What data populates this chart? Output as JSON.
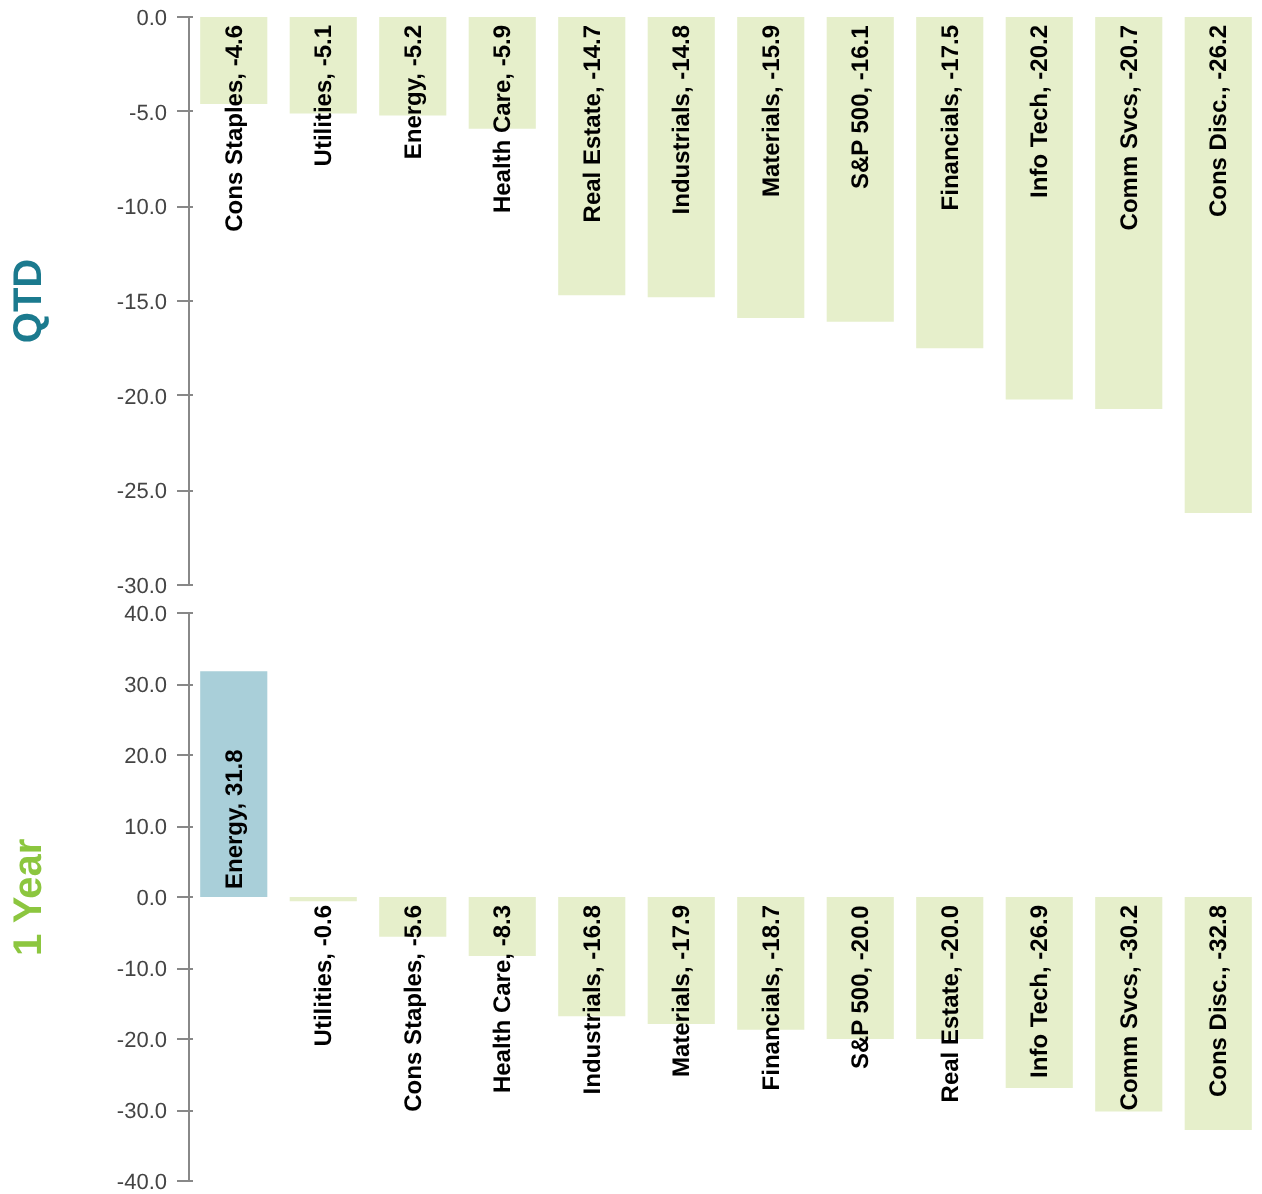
{
  "chart_data": [
    {
      "type": "bar",
      "ylabel": "QTD",
      "categories": [
        "Cons Staples, -4.6",
        "Utilities, -5.1",
        "Energy, -5.2",
        "Health Care, -5.9",
        "Real Estate, -14.7",
        "Industrials, -14.8",
        "Materials, -15.9",
        "S&P 500, -16.1",
        "Financials, -17.5",
        "Info Tech, -20.2",
        "Comm Svcs, -20.7",
        "Cons Disc., -26.2"
      ],
      "values": [
        -4.6,
        -5.1,
        -5.2,
        -5.9,
        -14.7,
        -14.8,
        -15.9,
        -16.1,
        -17.5,
        -20.2,
        -20.7,
        -26.2
      ],
      "color": "#e6efcb",
      "ylim": [
        -30,
        0
      ],
      "yticks": [
        {
          "value": -30,
          "label": "-30.0"
        },
        {
          "value": -25,
          "label": "-25.0"
        },
        {
          "value": -20,
          "label": "-20.0"
        },
        {
          "value": -15,
          "label": "-15.0"
        },
        {
          "value": -10,
          "label": "-10.0"
        },
        {
          "value": -5,
          "label": "-5.0"
        },
        {
          "value": 0,
          "label": "0.0"
        }
      ]
    },
    {
      "type": "bar",
      "ylabel": "1 Year",
      "categories": [
        "Energy, 31.8",
        "Utilities, -0.6",
        "Cons Staples, -5.6",
        "Health Care, -8.3",
        "Industrials, -16.8",
        "Materials, -17.9",
        "Financials, -18.7",
        "S&P 500, -20.0",
        "Real Estate, -20.0",
        "Info Tech, -26.9",
        "Comm Svcs, -30.2",
        "Cons Disc., -32.8"
      ],
      "values": [
        31.8,
        -0.6,
        -5.6,
        -8.3,
        -16.8,
        -17.9,
        -18.7,
        -20.0,
        -20.0,
        -26.9,
        -30.2,
        -32.8
      ],
      "colors": [
        "#a9cfd9",
        "#e6efcb",
        "#e6efcb",
        "#e6efcb",
        "#e6efcb",
        "#e6efcb",
        "#e6efcb",
        "#e6efcb",
        "#e6efcb",
        "#e6efcb",
        "#e6efcb",
        "#e6efcb"
      ],
      "ylim": [
        -40,
        40
      ],
      "yticks": [
        {
          "value": -40,
          "label": "-40.0"
        },
        {
          "value": -30,
          "label": "-30.0"
        },
        {
          "value": -20,
          "label": "-20.0"
        },
        {
          "value": -10,
          "label": "-10.0"
        },
        {
          "value": 0,
          "label": "0.0"
        },
        {
          "value": 10,
          "label": "10.0"
        },
        {
          "value": 20,
          "label": "20.0"
        },
        {
          "value": 30,
          "label": "30.0"
        },
        {
          "value": 40,
          "label": "40.0"
        }
      ]
    }
  ]
}
